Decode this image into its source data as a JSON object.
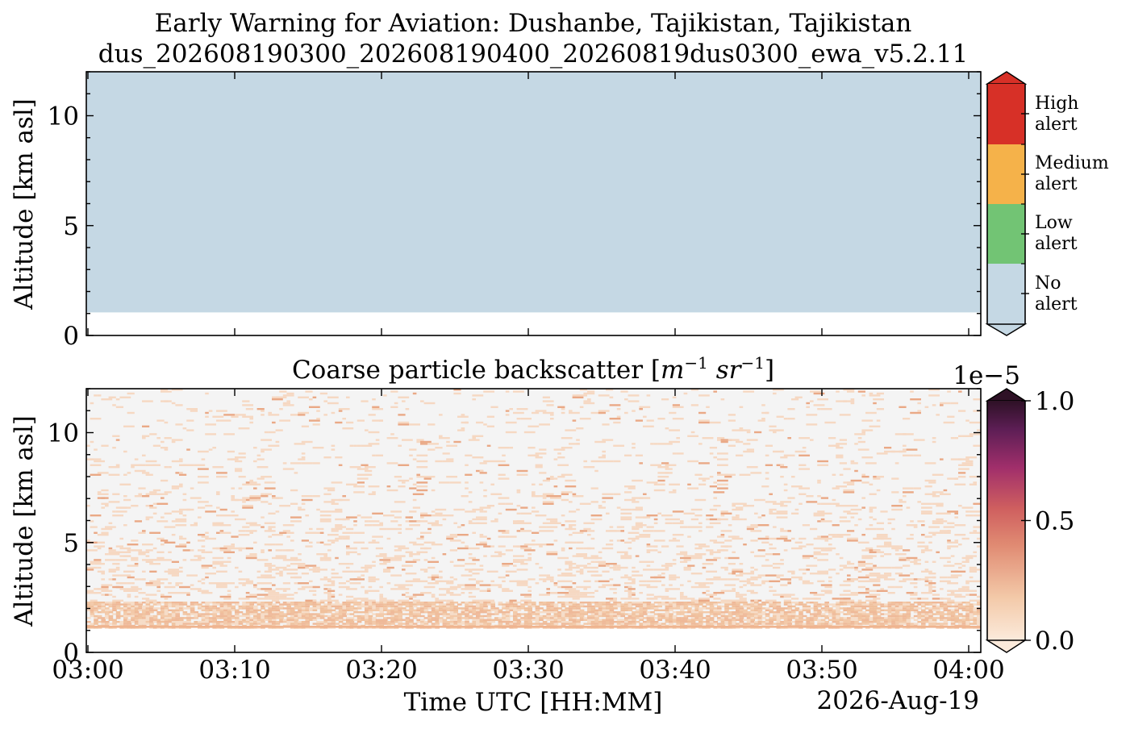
{
  "title_line1": "Early Warning for Aviation: Dushanbe, Tajikistan, Tajikistan",
  "title_line2": "dus_202608190300_202608190400_20260819dus0300_ewa_v5.2.11",
  "date_label": "2026-Aug-19",
  "colors": {
    "no_alert": "#c5d8e4",
    "low_alert": "#72c474",
    "medium_alert": "#f5b24a",
    "high_alert": "#d73027",
    "background_bs": "#f4f4f4",
    "bs_low": "#f3c9a8",
    "bs_mid": "#d15f5f",
    "bs_high": "#3a1630"
  },
  "chart_data": [
    {
      "type": "heatmap",
      "title": "",
      "ylabel": "Altitude [km asl]",
      "ylim": [
        0,
        12
      ],
      "yticks": [
        0,
        5,
        10
      ],
      "x_range": [
        "03:00",
        "04:00"
      ],
      "x_tick_labels_shown": false,
      "colorbar": {
        "type": "categorical",
        "categories": [
          {
            "label_line1": "No",
            "label_line2": "alert"
          },
          {
            "label_line1": "Low",
            "label_line2": "alert"
          },
          {
            "label_line1": "Medium",
            "label_line2": "alert"
          },
          {
            "label_line1": "High",
            "label_line2": "alert"
          }
        ]
      },
      "regions": [
        {
          "category": "No alert",
          "altitude_range_km": [
            1.05,
            12
          ],
          "time_range": [
            "03:00",
            "04:00"
          ]
        }
      ]
    },
    {
      "type": "heatmap",
      "title": "Coarse particle backscatter [m⁻¹ sr⁻¹]",
      "title_text": "Coarse particle backscatter [",
      "title_unit": "m",
      "title_unit_exp": "−1",
      "title_unit2": "sr",
      "title_unit2_exp": "−1",
      "title_close": "]",
      "xlabel": "Time UTC [HH:MM]",
      "ylabel": "Altitude [km asl]",
      "ylim": [
        0,
        12
      ],
      "yticks": [
        0,
        5,
        10
      ],
      "xticks": [
        "03:00",
        "03:10",
        "03:20",
        "03:30",
        "03:40",
        "03:50",
        "04:00"
      ],
      "colorbar": {
        "type": "continuous",
        "scale_label": "1e−5",
        "range": [
          0.0,
          1.0
        ],
        "tick_labels": [
          "0.0",
          "0.5",
          "1.0"
        ]
      },
      "features": [
        {
          "name": "aerosol layer",
          "altitude_range_km": [
            1.1,
            2.4
          ],
          "value_approx": 0.1
        },
        {
          "name": "sparse noise",
          "altitude_range_km": [
            2.4,
            12
          ],
          "value_approx": 0.05
        }
      ]
    }
  ]
}
